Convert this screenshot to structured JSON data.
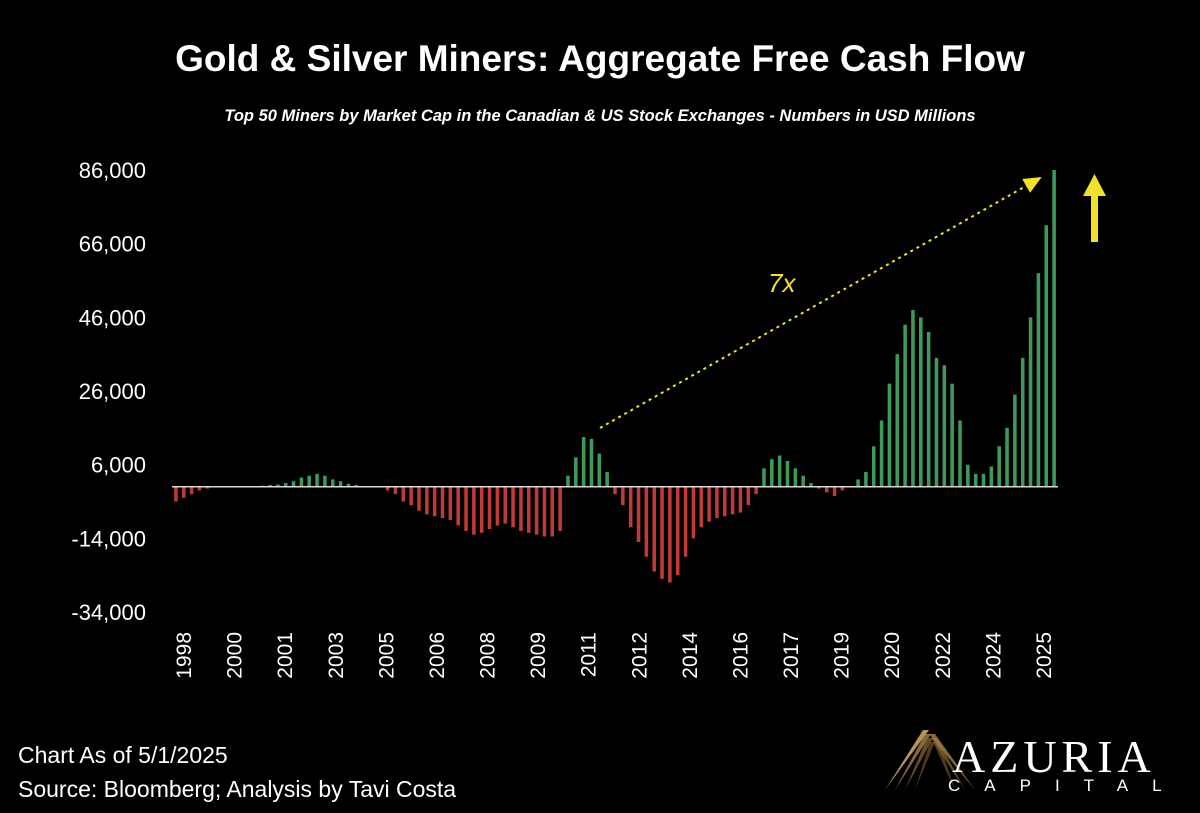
{
  "chart_data": {
    "type": "bar",
    "title": "Gold & Silver Miners: Aggregate Free Cash Flow",
    "subtitle": "Top 50 Miners by Market Cap in the Canadian & US Stock Exchanges - Numbers in USD Millions",
    "ylim": [
      -34000,
      86000
    ],
    "yticks": [
      "86,000",
      "66,000",
      "46,000",
      "26,000",
      "6,000",
      "-14,000",
      "-34,000"
    ],
    "ytick_values": [
      86000,
      66000,
      46000,
      26000,
      6000,
      -14000,
      -34000
    ],
    "xtick_labels": [
      "1998",
      "2000",
      "2001",
      "2003",
      "2005",
      "2006",
      "2008",
      "2009",
      "2011",
      "2012",
      "2014",
      "2016",
      "2017",
      "2019",
      "2020",
      "2022",
      "2024",
      "2025"
    ],
    "grid": false,
    "positive_color": "#3f9a5a",
    "negative_color": "#c23a36",
    "annotations": [
      {
        "text": "7x",
        "color": "#f2e12a"
      }
    ],
    "values": [
      -4000,
      -3000,
      -2000,
      -1000,
      -500,
      -200,
      0,
      0,
      0,
      0,
      200,
      300,
      500,
      600,
      1000,
      1500,
      2500,
      3000,
      3500,
      3000,
      2000,
      1500,
      800,
      500,
      200,
      0,
      0,
      -1000,
      -2000,
      -4000,
      -5000,
      -6500,
      -7500,
      -8000,
      -8500,
      -9000,
      -10500,
      -12000,
      -13000,
      -12500,
      -11500,
      -10500,
      -10000,
      -11000,
      -12000,
      -12500,
      -13000,
      -13500,
      -13500,
      -12000,
      3000,
      8000,
      13500,
      13000,
      9000,
      4000,
      -2000,
      -5000,
      -11000,
      -15000,
      -19000,
      -23000,
      -25000,
      -26000,
      -24000,
      -19000,
      -14000,
      -11000,
      -9500,
      -8500,
      -8000,
      -7500,
      -7000,
      -5000,
      -2000,
      5000,
      7500,
      8500,
      7000,
      5000,
      3000,
      1000,
      -500,
      -1500,
      -2500,
      -1000,
      0,
      2000,
      4000,
      11000,
      18000,
      28000,
      36000,
      44000,
      48000,
      46000,
      42000,
      35000,
      33000,
      28000,
      18000,
      6000,
      3500,
      3500,
      5500,
      11000,
      16000,
      25000,
      35000,
      46000,
      58000,
      71000,
      86000
    ]
  },
  "footer": {
    "line1": "Chart As of 5/1/2025",
    "line2": "Source: Bloomberg; Analysis by Tavi Costa"
  },
  "brand": {
    "name": "AZURIA",
    "sub": "CAPITAL"
  }
}
